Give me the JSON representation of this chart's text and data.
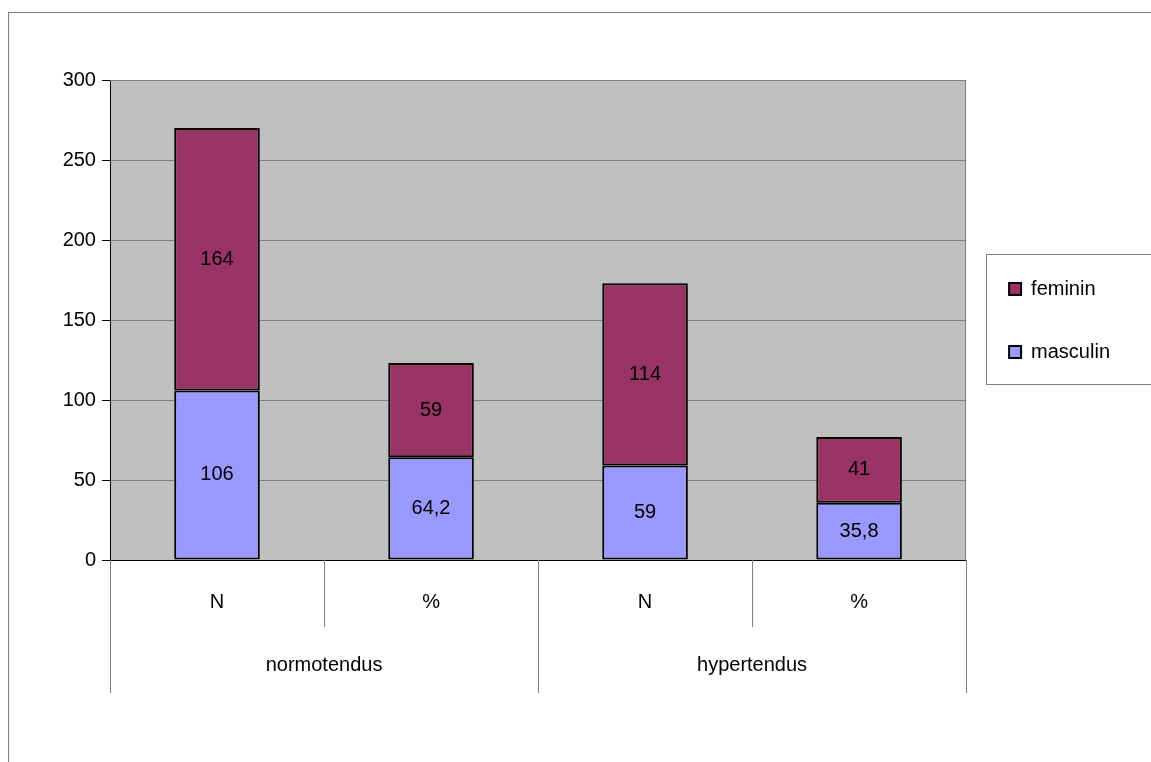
{
  "chart_data": {
    "type": "bar",
    "stacked": true,
    "categories": [
      "N",
      "%",
      "N",
      "%"
    ],
    "annotations": [
      "normotendus",
      "hypertendus"
    ],
    "series": [
      {
        "name": "masculin",
        "color": "#9999ff",
        "values": [
          106,
          64.2,
          59,
          35.8
        ],
        "value_labels": [
          "106",
          "64,2",
          "59",
          "35,8"
        ]
      },
      {
        "name": "feminin",
        "color": "#993366",
        "values": [
          164,
          59,
          114,
          41
        ],
        "value_labels": [
          "164",
          "59",
          "114",
          "41"
        ]
      }
    ],
    "ylim": [
      0,
      300
    ],
    "yticks": [
      0,
      50,
      100,
      150,
      200,
      250,
      300
    ],
    "grid": "y",
    "legend": "right"
  }
}
